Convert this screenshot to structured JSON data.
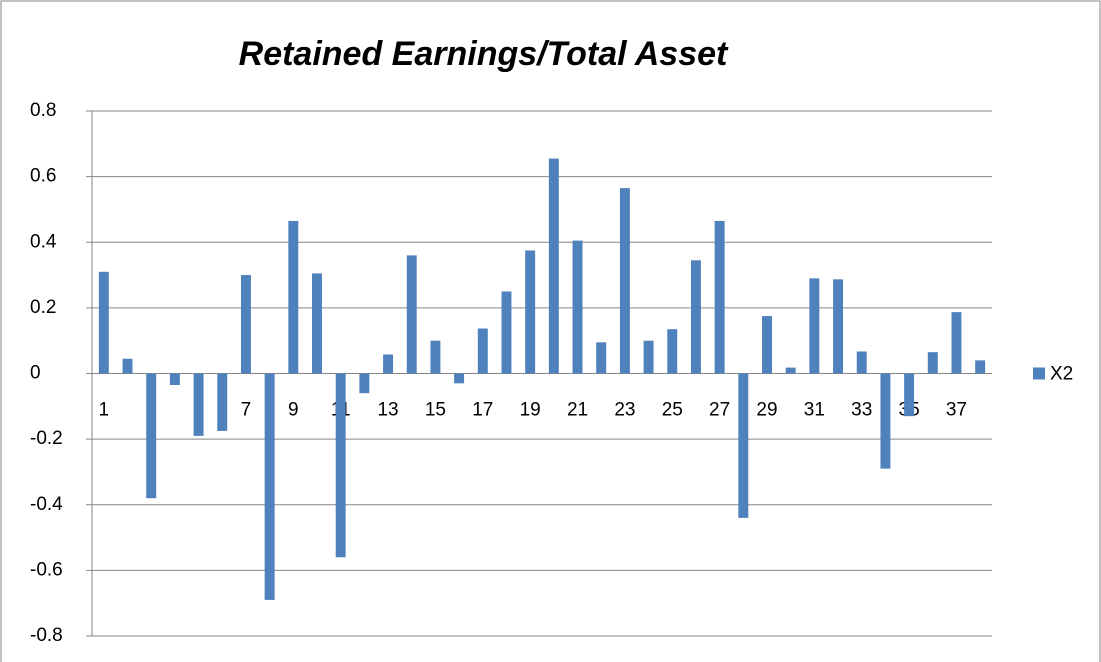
{
  "chart_data": {
    "type": "bar",
    "title": "Retained Earnings/Total Asset",
    "categories": [
      1,
      null,
      3,
      null,
      5,
      null,
      7,
      null,
      9,
      null,
      11,
      null,
      13,
      null,
      15,
      null,
      17,
      null,
      19,
      null,
      21,
      null,
      23,
      null,
      25,
      null,
      27,
      null,
      29,
      null,
      31,
      null,
      33,
      null,
      35,
      null,
      37,
      null
    ],
    "series": [
      {
        "name": "X2",
        "color": "#4f81bd",
        "values": [
          0.31,
          0.045,
          -0.38,
          -0.035,
          -0.19,
          -0.175,
          0.3,
          -0.69,
          0.465,
          0.305,
          -0.56,
          -0.06,
          0.058,
          0.36,
          0.1,
          -0.03,
          0.137,
          0.25,
          0.375,
          0.655,
          0.405,
          0.095,
          0.565,
          0.1,
          0.135,
          0.345,
          0.465,
          -0.44,
          0.175,
          0.018,
          0.29,
          0.287,
          0.067,
          -0.29,
          -0.13,
          0.065,
          0.187,
          0.04
        ]
      }
    ],
    "ylim": [
      -0.8,
      0.8
    ],
    "yticks": [
      -0.8,
      -0.6,
      -0.4,
      -0.2,
      0,
      0.2,
      0.4,
      0.6,
      0.8
    ],
    "grid": true,
    "legend": "right"
  }
}
